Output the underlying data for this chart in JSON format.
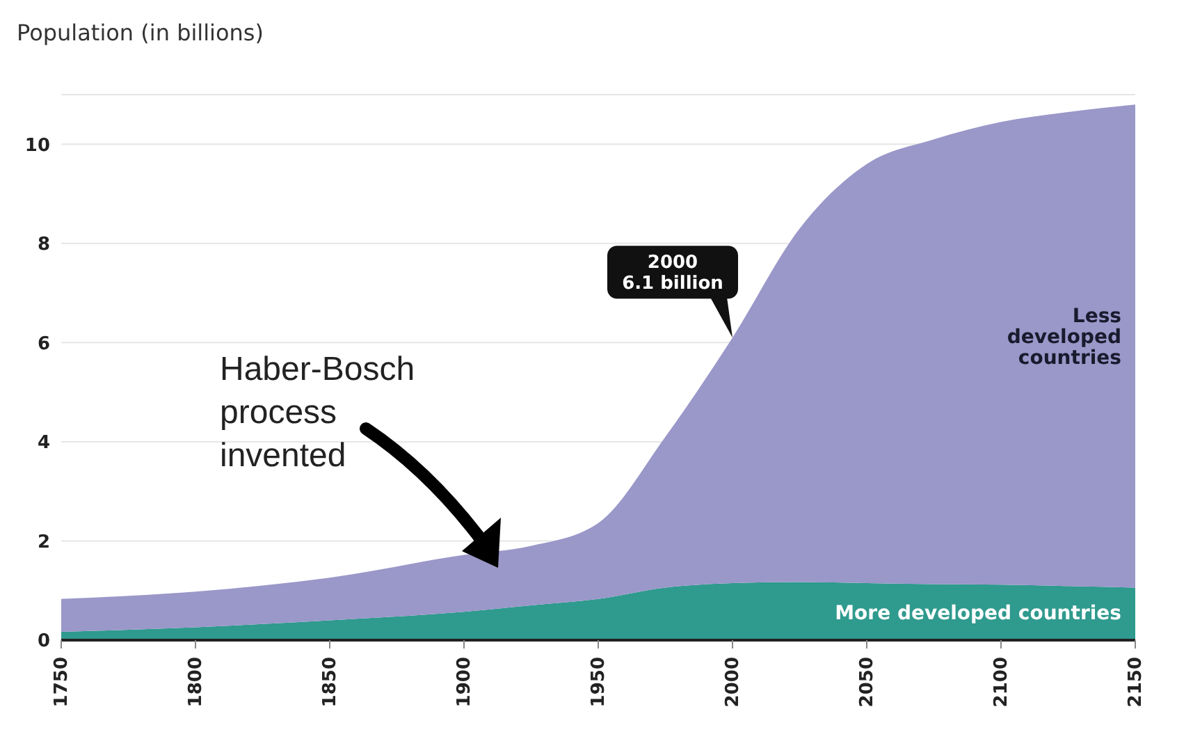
{
  "chart_data": {
    "type": "area",
    "stacked": true,
    "ylabel": "Population (in billions)",
    "x": [
      1750,
      1800,
      1850,
      1900,
      1925,
      1950,
      1975,
      2000,
      2025,
      2050,
      2075,
      2100,
      2125,
      2150
    ],
    "series": [
      {
        "name": "More developed countries",
        "color": "#2f9a8e",
        "values": [
          0.17,
          0.26,
          0.4,
          0.57,
          0.7,
          0.83,
          1.06,
          1.15,
          1.17,
          1.15,
          1.13,
          1.12,
          1.09,
          1.06
        ]
      },
      {
        "name": "Less developed countries",
        "color": "#9a97c9",
        "values": [
          0.66,
          0.72,
          0.86,
          1.15,
          1.2,
          1.53,
          3.04,
          4.95,
          7.13,
          8.45,
          8.97,
          9.33,
          9.56,
          9.74
        ]
      }
    ],
    "xlim": [
      1750,
      2150
    ],
    "xticks": [
      1750,
      1800,
      1850,
      1900,
      1950,
      2000,
      2050,
      2100,
      2150
    ],
    "ylim": [
      0,
      11
    ],
    "yticks": [
      0,
      2,
      4,
      6,
      8,
      10
    ],
    "grid": "y",
    "annotations": [
      {
        "text": "2000\n6.1 billion",
        "x": 2000,
        "y": 6.1
      },
      "Haber-Bosch\nprocess\ninvented"
    ]
  }
}
